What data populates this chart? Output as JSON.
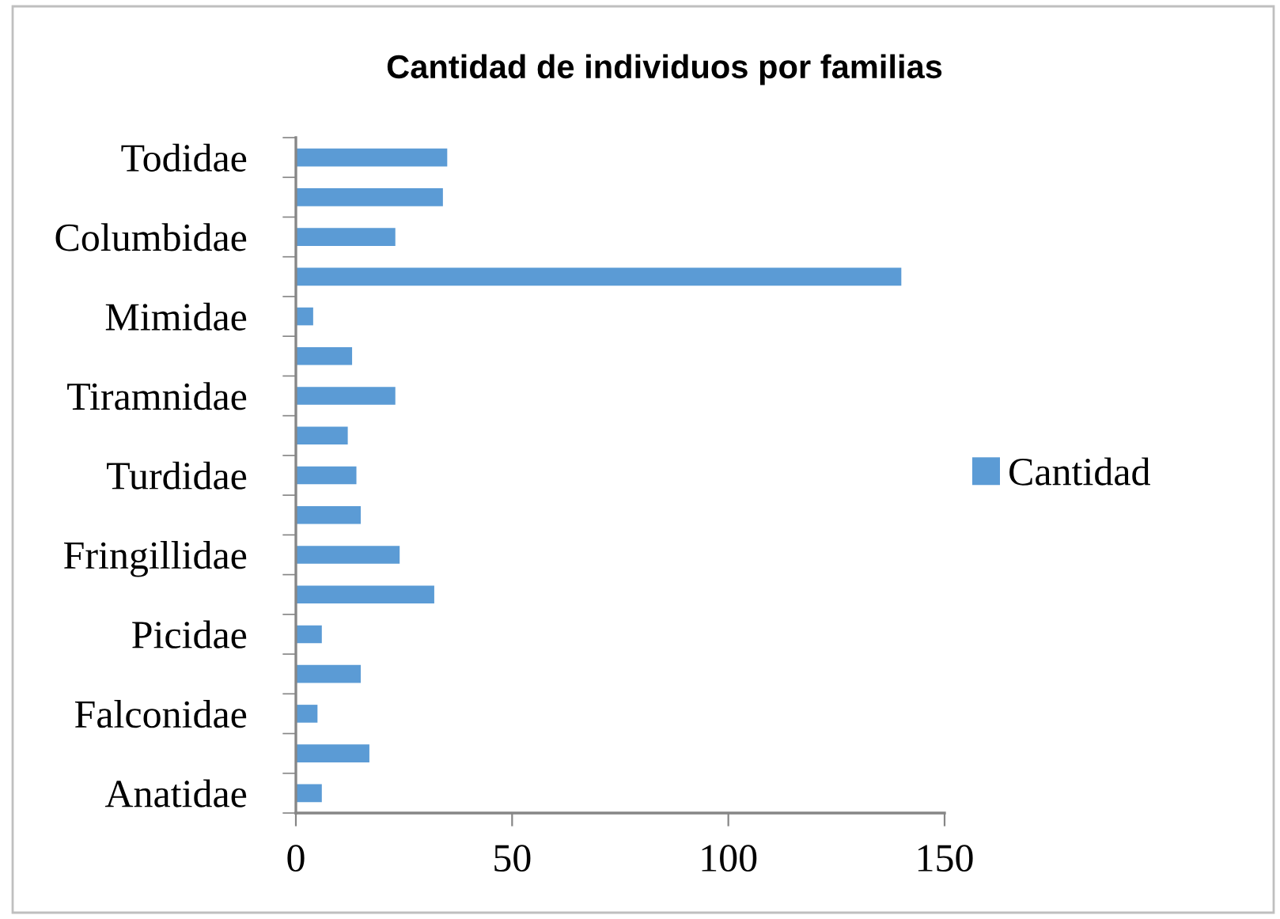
{
  "chart_data": {
    "type": "bar",
    "orientation": "horizontal",
    "title": "Cantidad de individuos por familias",
    "categories": [
      "Todidae",
      null,
      "Columbidae",
      null,
      "Mimidae",
      null,
      "Tiramnidae",
      null,
      "Turdidae",
      null,
      "Fringillidae",
      null,
      "Picidae",
      null,
      "Falconidae",
      null,
      "Anatidae"
    ],
    "series": [
      {
        "name": "Cantidad",
        "color": "#5b9bd5",
        "values": [
          35,
          34,
          23,
          140,
          4,
          13,
          23,
          12,
          14,
          15,
          24,
          32,
          6,
          15,
          5,
          17,
          6
        ]
      }
    ],
    "xlim": [
      0,
      150
    ],
    "xticks": [
      0,
      50,
      100,
      150
    ],
    "grid": false,
    "legend": "right"
  }
}
